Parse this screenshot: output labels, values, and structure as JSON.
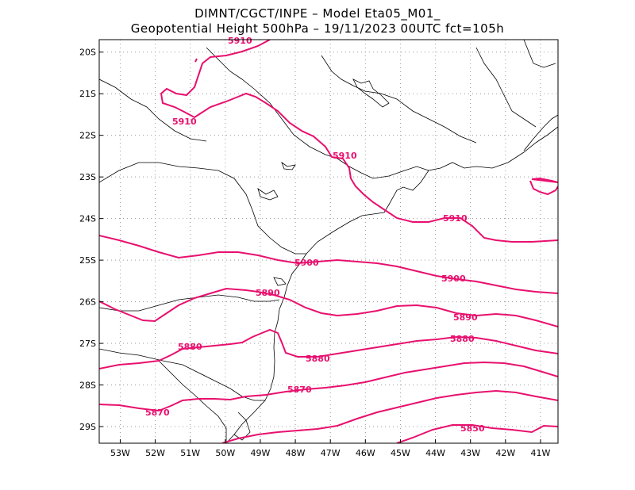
{
  "title": {
    "line1": "DIMNT/CGCT/INPE –   Model Eta05_M01_",
    "line2": "Geopotential Height 500hPa –  19/11/2023 00UTC fct=105h"
  },
  "colors": {
    "contour": "#e8106e",
    "coast": "#000000",
    "grid": "#999999"
  },
  "axes": {
    "lon_labels": [
      "53W",
      "52W",
      "51W",
      "50W",
      "49W",
      "48W",
      "47W",
      "46W",
      "45W",
      "44W",
      "43W",
      "42W",
      "41W"
    ],
    "lat_labels": [
      "20S",
      "21S",
      "22S",
      "23S",
      "24S",
      "25S",
      "26S",
      "27S",
      "28S",
      "29S"
    ],
    "lon_range": [
      -53.6,
      -40.5
    ],
    "lat_range": [
      -29.4,
      -19.7
    ]
  },
  "contours": [
    {
      "level": "5910",
      "labels": [
        "5910",
        "5910",
        "5910",
        "5910"
      ]
    },
    {
      "level": "5900",
      "labels": [
        "5900",
        "5900"
      ]
    },
    {
      "level": "5890",
      "labels": [
        "5890",
        "5890"
      ]
    },
    {
      "level": "5880",
      "labels": [
        "5880",
        "5880",
        "5880"
      ]
    },
    {
      "level": "5870",
      "labels": [
        "5870",
        "5870"
      ]
    },
    {
      "level": "5850",
      "labels": [
        "5850"
      ]
    }
  ]
}
